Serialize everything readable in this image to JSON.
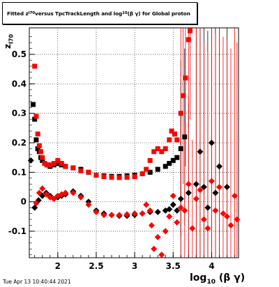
{
  "title": {
    "prefix": "Fitted  z",
    "prefix_sub": "I70",
    "middle": " versus TpcTrackLength and log",
    "middle_sub": "10",
    "suffix": " (β γ) for Global proton"
  },
  "axes": {
    "ylabel_main": "z",
    "ylabel_sub": "I70",
    "xlabel_main": "log",
    "xlabel_sub": "10",
    "xlabel_suffix": " (β γ)"
  },
  "timestamp": "Tue Apr 13 10:40:44 2021",
  "colors": {
    "series_black": "#000000",
    "series_red": "#ff0000",
    "grid": "#000000"
  },
  "chart_data": {
    "type": "scatter",
    "xlim": [
      1.63,
      4.35
    ],
    "ylim": [
      -0.19,
      0.59
    ],
    "grid": true,
    "x_ticks": [
      "2",
      "2.5",
      "3",
      "3.5",
      "4"
    ],
    "x_tick_values": [
      2,
      2.5,
      3,
      3.5,
      4
    ],
    "y_ticks": [
      "-0.1",
      "0",
      "0.1",
      "0.2",
      "0.3",
      "0.4",
      "0.5"
    ],
    "y_tick_values": [
      -0.1,
      0,
      0.1,
      0.2,
      0.3,
      0.4,
      0.5
    ],
    "series": [
      {
        "marker": "square",
        "color": "#000000",
        "points": [
          [
            1.68,
            0.33
          ],
          [
            1.7,
            0.28
          ],
          [
            1.72,
            0.21
          ],
          [
            1.74,
            0.18
          ],
          [
            1.76,
            0.17
          ],
          [
            1.78,
            0.15
          ],
          [
            1.8,
            0.14
          ],
          [
            1.83,
            0.13
          ],
          [
            1.86,
            0.125
          ],
          [
            1.9,
            0.12
          ],
          [
            1.95,
            0.125
          ],
          [
            2.0,
            0.13
          ],
          [
            2.05,
            0.125
          ],
          [
            2.1,
            0.12
          ],
          [
            2.2,
            0.115
          ],
          [
            2.3,
            0.11
          ],
          [
            2.4,
            0.1
          ],
          [
            2.5,
            0.09
          ],
          [
            2.6,
            0.088
          ],
          [
            2.7,
            0.086
          ],
          [
            2.8,
            0.086
          ],
          [
            2.9,
            0.088
          ],
          [
            3.0,
            0.09
          ],
          [
            3.1,
            0.095
          ],
          [
            3.2,
            0.1
          ],
          [
            3.3,
            0.11
          ],
          [
            3.4,
            0.12
          ],
          [
            3.45,
            0.13
          ],
          [
            3.5,
            0.14
          ],
          [
            3.55,
            0.15
          ],
          [
            3.6,
            0.18
          ],
          [
            3.65,
            0.22
          ]
        ]
      },
      {
        "marker": "square",
        "color": "#ff0000",
        "points": [
          [
            1.7,
            0.46
          ],
          [
            1.72,
            0.29
          ],
          [
            1.74,
            0.23
          ],
          [
            1.76,
            0.19
          ],
          [
            1.78,
            0.17
          ],
          [
            1.8,
            0.15
          ],
          [
            1.83,
            0.13
          ],
          [
            1.86,
            0.125
          ],
          [
            1.9,
            0.125
          ],
          [
            1.95,
            0.13
          ],
          [
            2.0,
            0.14
          ],
          [
            2.05,
            0.13
          ],
          [
            2.1,
            0.12
          ],
          [
            2.2,
            0.115
          ],
          [
            2.3,
            0.105
          ],
          [
            2.4,
            0.1
          ],
          [
            2.5,
            0.09
          ],
          [
            2.6,
            0.085
          ],
          [
            2.7,
            0.083
          ],
          [
            2.8,
            0.082
          ],
          [
            2.9,
            0.083
          ],
          [
            3.0,
            0.085
          ],
          [
            3.1,
            0.095
          ],
          [
            3.15,
            0.11
          ],
          [
            3.2,
            0.14
          ],
          [
            3.25,
            0.17
          ],
          [
            3.3,
            0.18
          ],
          [
            3.35,
            0.17
          ],
          [
            3.4,
            0.18
          ],
          [
            3.45,
            0.21
          ],
          [
            3.48,
            0.24
          ],
          [
            3.52,
            0.23
          ],
          [
            3.55,
            0.21
          ],
          [
            3.6,
            0.3
          ],
          [
            3.63,
            0.36
          ],
          [
            3.66,
            0.42
          ],
          [
            3.7,
            0.55
          ],
          [
            3.72,
            0.58
          ]
        ]
      },
      {
        "marker": "diamond",
        "color": "#000000",
        "points": [
          [
            1.65,
            0.14
          ],
          [
            1.7,
            -0.02
          ],
          [
            1.75,
            0.005
          ],
          [
            1.8,
            0.02
          ],
          [
            1.85,
            0.03
          ],
          [
            1.9,
            0.02
          ],
          [
            1.95,
            0.01
          ],
          [
            2.0,
            0.015
          ],
          [
            2.05,
            0.02
          ],
          [
            2.1,
            0.025
          ],
          [
            2.2,
            0.035
          ],
          [
            2.3,
            0.02
          ],
          [
            2.4,
            0.0
          ],
          [
            2.5,
            -0.03
          ],
          [
            2.6,
            -0.04
          ],
          [
            2.7,
            -0.045
          ],
          [
            2.8,
            -0.048
          ],
          [
            2.9,
            -0.048
          ],
          [
            3.0,
            -0.045
          ],
          [
            3.1,
            -0.04
          ],
          [
            3.2,
            -0.035
          ],
          [
            3.3,
            -0.035
          ],
          [
            3.4,
            -0.03
          ],
          [
            3.45,
            -0.025
          ],
          [
            3.5,
            -0.01
          ],
          [
            3.55,
            -0.03
          ],
          [
            3.6,
            0.01
          ],
          [
            3.7,
            0.03
          ],
          [
            3.8,
            0.06
          ],
          [
            3.85,
            0.17
          ],
          [
            3.9,
            0.05
          ],
          [
            3.95,
            -0.02
          ],
          [
            4.0,
            0.2
          ],
          [
            4.05,
            0.03
          ],
          [
            4.1,
            0.12
          ],
          [
            4.2,
            0.05
          ]
        ]
      },
      {
        "marker": "diamond",
        "color": "#ff0000",
        "points": [
          [
            1.72,
            -0.005
          ],
          [
            1.76,
            0.03
          ],
          [
            1.8,
            0.045
          ],
          [
            1.85,
            0.025
          ],
          [
            1.9,
            0.015
          ],
          [
            1.95,
            0.01
          ],
          [
            2.0,
            0.02
          ],
          [
            2.05,
            0.025
          ],
          [
            2.1,
            0.03
          ],
          [
            2.2,
            0.03
          ],
          [
            2.3,
            0.015
          ],
          [
            2.4,
            -0.01
          ],
          [
            2.5,
            -0.035
          ],
          [
            2.6,
            -0.045
          ],
          [
            2.7,
            -0.045
          ],
          [
            2.8,
            -0.045
          ],
          [
            2.9,
            -0.043
          ],
          [
            3.0,
            -0.04
          ],
          [
            3.1,
            -0.04
          ],
          [
            3.15,
            -0.01
          ],
          [
            3.2,
            -0.03
          ],
          [
            3.22,
            -0.08
          ],
          [
            3.25,
            -0.16
          ],
          [
            3.3,
            -0.12
          ],
          [
            3.35,
            -0.18
          ],
          [
            3.4,
            -0.1
          ],
          [
            3.45,
            -0.05
          ],
          [
            3.5,
            0.02
          ],
          [
            3.55,
            -0.07
          ],
          [
            3.6,
            -0.02
          ],
          [
            3.65,
            -0.03
          ],
          [
            3.7,
            0.06
          ],
          [
            3.75,
            -0.09
          ],
          [
            3.8,
            0.01
          ],
          [
            3.85,
            0.04
          ],
          [
            3.9,
            -0.06
          ],
          [
            3.95,
            -0.09
          ],
          [
            4.0,
            0.07
          ],
          [
            4.05,
            -0.03
          ],
          [
            4.1,
            0.05
          ],
          [
            4.15,
            -0.04
          ],
          [
            4.2,
            -0.05
          ],
          [
            4.25,
            -0.08
          ],
          [
            4.3,
            0.02
          ],
          [
            4.33,
            -0.06
          ]
        ]
      }
    ]
  }
}
